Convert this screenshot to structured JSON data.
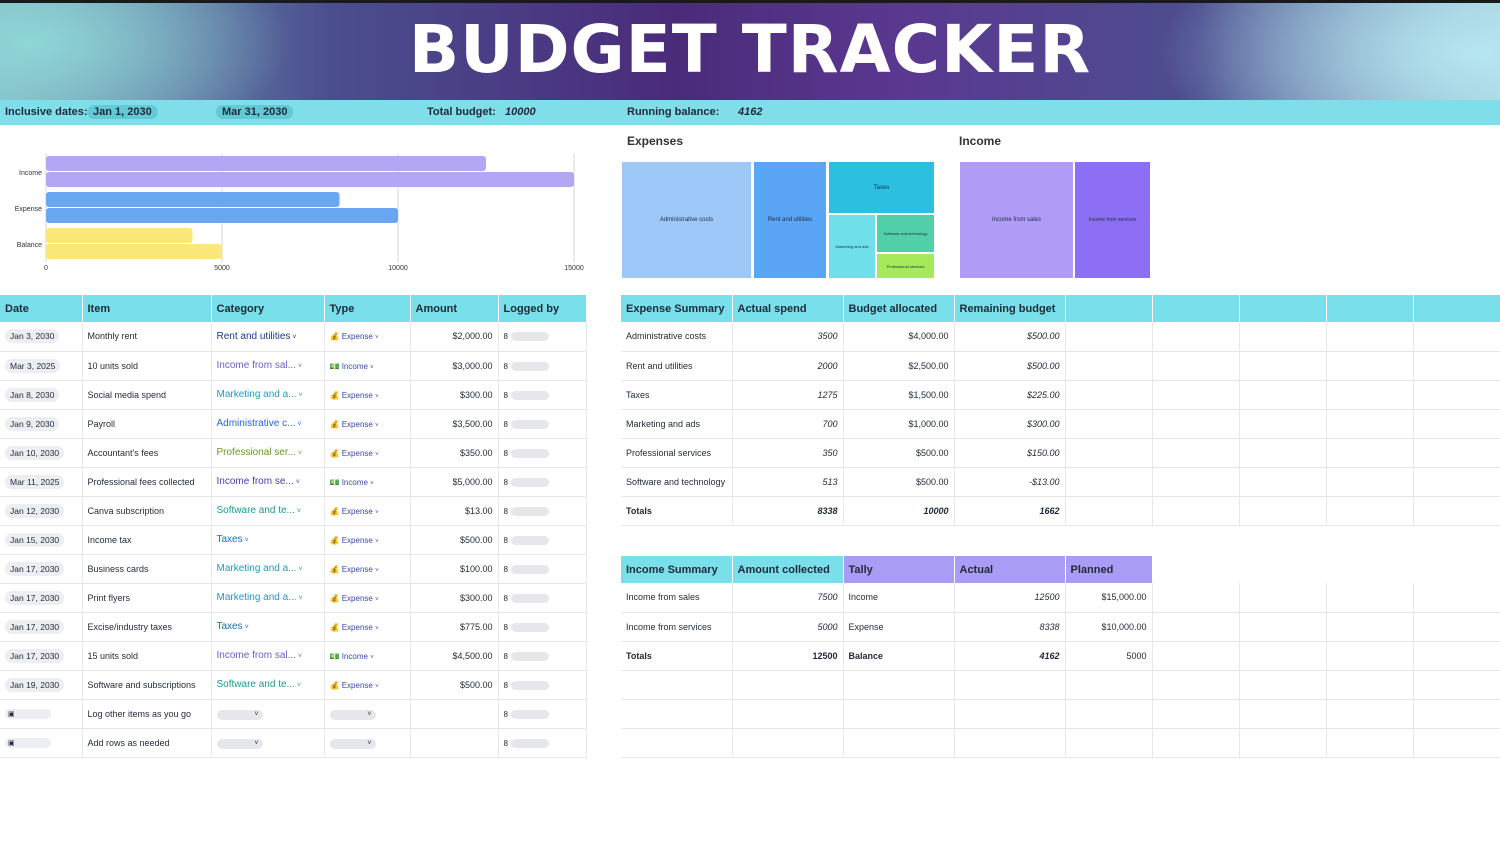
{
  "title": "BUDGET TRACKER",
  "info": {
    "dates_label": "Inclusive dates:",
    "start_date": "Jan 1, 2030",
    "end_date": "Mar 31, 2030",
    "total_budget_label": "Total budget:",
    "total_budget": "10000",
    "running_balance_label": "Running balance:",
    "running_balance": "4162"
  },
  "chart_data": {
    "type": "bar",
    "categories": [
      "Income",
      "Expense",
      "Balance"
    ],
    "series": [
      {
        "values": [
          12500,
          8338,
          4162
        ],
        "color": "#b3a6f5"
      },
      {
        "values": [
          15000,
          10000,
          5000
        ],
        "color": "#b3a6f5"
      }
    ],
    "bar_colors": {
      "Income": "#b3a6f5",
      "Expense": "#6aa7f3",
      "Balance": "#fbe87a"
    },
    "ticks": [
      "0",
      "5000",
      "10000",
      "15000"
    ],
    "xlim": [
      0,
      15000
    ],
    "orientation": "horizontal"
  },
  "treemaps": {
    "expenses_title": "Expenses",
    "income_title": "Income",
    "expenses": [
      {
        "label": "Administrative costs",
        "color": "#9ec8f8"
      },
      {
        "label": "Rent and utilities",
        "color": "#5aa5f5"
      },
      {
        "label": "Taxes",
        "color": "#2cc0e0"
      },
      {
        "label": "Marketing and ads",
        "color": "#6fe0ea"
      },
      {
        "label": "Software and technology",
        "color": "#50cfa8"
      },
      {
        "label": "Professional services",
        "color": "#a5ea5a"
      }
    ],
    "income": [
      {
        "label": "Income from sales",
        "color": "#b09cf7"
      },
      {
        "label": "Income from services",
        "color": "#8c6ff5"
      }
    ]
  },
  "log": {
    "headers": [
      "Date",
      "Item",
      "Category",
      "Type",
      "Amount",
      "Logged by"
    ],
    "rows": [
      {
        "date": "Jan 3, 2030",
        "item": "Monthly rent",
        "category": "Rent and utilities",
        "cat_color": "#1e3a8a",
        "type": "Expense",
        "amount": "$2,000.00"
      },
      {
        "date": "Mar 3, 2025",
        "item": "10 units sold",
        "category": "Income from sal...",
        "cat_color": "#6b5fc7",
        "type": "Income",
        "amount": "$3,000.00"
      },
      {
        "date": "Jan 8, 2030",
        "item": "Social media spend",
        "category": "Marketing and a...",
        "cat_color": "#1f9bc4",
        "type": "Expense",
        "amount": "$300.00"
      },
      {
        "date": "Jan 9, 2030",
        "item": "Payroll",
        "category": "Administrative c...",
        "cat_color": "#2563eb",
        "type": "Expense",
        "amount": "$3,500.00"
      },
      {
        "date": "Jan 10, 2030",
        "item": "Accountant's fees",
        "category": "Professional ser...",
        "cat_color": "#6a9a1a",
        "type": "Expense",
        "amount": "$350.00"
      },
      {
        "date": "Mar 11, 2025",
        "item": "Professional fees collected",
        "category": "Income from se...",
        "cat_color": "#4c3bb0",
        "type": "Income",
        "amount": "$5,000.00"
      },
      {
        "date": "Jan 12, 2030",
        "item": "Canva subscription",
        "category": "Software and te...",
        "cat_color": "#1b9c8a",
        "type": "Expense",
        "amount": "$13.00"
      },
      {
        "date": "Jan 15, 2030",
        "item": "Income tax",
        "category": "Taxes",
        "cat_color": "#1572b6",
        "type": "Expense",
        "amount": "$500.00"
      },
      {
        "date": "Jan 17, 2030",
        "item": "Business cards",
        "category": "Marketing and a...",
        "cat_color": "#1f9bc4",
        "type": "Expense",
        "amount": "$100.00"
      },
      {
        "date": "Jan 17, 2030",
        "item": "Print flyers",
        "category": "Marketing and a...",
        "cat_color": "#1f9bc4",
        "type": "Expense",
        "amount": "$300.00"
      },
      {
        "date": "Jan 17, 2030",
        "item": "Excise/industry taxes",
        "category": "Taxes",
        "cat_color": "#1572b6",
        "type": "Expense",
        "amount": "$775.00"
      },
      {
        "date": "Jan 17, 2030",
        "item": "15 units sold",
        "category": "Income from sal...",
        "cat_color": "#6b5fc7",
        "type": "Income",
        "amount": "$4,500.00"
      },
      {
        "date": "Jan 19, 2030",
        "item": "Software and subscriptions",
        "category": "Software and te...",
        "cat_color": "#1b9c8a",
        "type": "Expense",
        "amount": "$500.00"
      }
    ],
    "empty_rows": [
      {
        "item": "Log other items as you go"
      },
      {
        "item": "Add rows as needed"
      }
    ]
  },
  "expense_summary": {
    "headers": [
      "Expense Summary",
      "Actual spend",
      "Budget allocated",
      "Remaining budget"
    ],
    "rows": [
      {
        "name": "Administrative costs",
        "actual": "3500",
        "budget": "$4,000.00",
        "remaining": "$500.00"
      },
      {
        "name": "Rent and utilities",
        "actual": "2000",
        "budget": "$2,500.00",
        "remaining": "$500.00"
      },
      {
        "name": "Taxes",
        "actual": "1275",
        "budget": "$1,500.00",
        "remaining": "$225.00"
      },
      {
        "name": "Marketing and ads",
        "actual": "700",
        "budget": "$1,000.00",
        "remaining": "$300.00"
      },
      {
        "name": "Professional services",
        "actual": "350",
        "budget": "$500.00",
        "remaining": "$150.00"
      },
      {
        "name": "Software and technology",
        "actual": "513",
        "budget": "$500.00",
        "remaining": "-$13.00"
      }
    ],
    "totals": {
      "name": "Totals",
      "actual": "8338",
      "budget": "10000",
      "remaining": "1662"
    }
  },
  "income_summary": {
    "headers": [
      "Income Summary",
      "Amount collected",
      "Tally",
      "Actual",
      "Planned"
    ],
    "rows": [
      {
        "name": "Income from sales",
        "amount": "7500",
        "tally": "Income",
        "actual": "12500",
        "planned": "$15,000.00"
      },
      {
        "name": "Income from services",
        "amount": "5000",
        "tally": "Expense",
        "actual": "8338",
        "planned": "$10,000.00"
      }
    ],
    "totals": {
      "name": "Totals",
      "amount": "12500",
      "tally": "Balance",
      "actual": "4162",
      "planned": "5000"
    }
  }
}
